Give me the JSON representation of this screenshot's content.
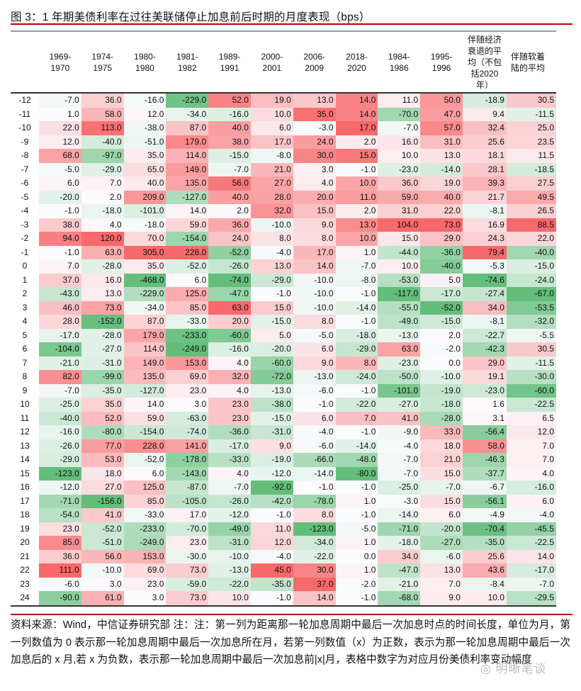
{
  "title": "图 3：1 年期美债利率在过往美联储停止加息前后时期的月度表现（bps）",
  "note": "资料来源：Wind，中信证券研究部  注：注：第一列为距离那一轮加息周期中最后一次加息时点的时间长度，单位为月，第一列数值为 0 表示那一轮加息周期中最后一次加息所在月，若第一列数值（x）为正数，表示为那一轮加息周期中最后一次加息后的 x 月,若 x 为负数，表示那一轮加息周期中最后一次加息前|x|月，表格中数字为对应月份美债利率变动幅度",
  "watermark": "明晰笔谈",
  "colors": {
    "positive": "#f8696b",
    "negative": "#63be7b",
    "neutral": "#fcfcff",
    "title_rule": "#c00000"
  },
  "chart_data": {
    "type": "heatmap",
    "title": "图 3：1 年期美债利率在过往美联储停止加息前后时期的月度表现（bps）",
    "row_labels": [
      "-12",
      "-11",
      "-10",
      "-9",
      "-8",
      "-7",
      "-6",
      "-5",
      "-4",
      "-3",
      "-2",
      "-1",
      "0",
      "1",
      "2",
      "3",
      "4",
      "5",
      "6",
      "7",
      "8",
      "9",
      "10",
      "11",
      "12",
      "13",
      "14",
      "15",
      "16",
      "17",
      "18",
      "19",
      "20",
      "21",
      "22",
      "23",
      "24"
    ],
    "columns": [
      {
        "header": "1969-\n1970",
        "values": [
          "-7.0",
          "1.0",
          "22.0",
          "12.0",
          "68.0",
          "-5.0",
          "6.0",
          "-20.0",
          "-1.0",
          "38.0",
          "94.0",
          "-1.0",
          "7.0",
          "37.0",
          "-43.0",
          "46.0",
          "28.0",
          "-17.0",
          "-104.0",
          "-21.0",
          "82.0",
          "-7.0",
          "-25.0",
          "-40.0",
          "-16.0",
          "-26.0",
          "-29.0",
          "-123.0",
          "-12.0",
          "-71.0",
          "-54.0",
          "23.0",
          "85.0",
          "36.0",
          "111.0",
          "-6.0",
          "-90.0"
        ]
      },
      {
        "header": "1974-\n1975",
        "values": [
          "36.0",
          "58.0",
          "113.0",
          "-40.0",
          "-97.0",
          "-29.0",
          "7.0",
          "2.0",
          "-18.0",
          "4.0",
          "120.0",
          "63.0",
          "-28.0",
          "16.0",
          "13.0",
          "73.0",
          "-152.0",
          "-28.0",
          "-27.0",
          "-31.0",
          "-99.0",
          "-35.0",
          "35.0",
          "52.0",
          "-80.0",
          "77.0",
          "53.0",
          "18.0",
          "27.0",
          "-156.0",
          "41.0",
          "-52.0",
          "-51.0",
          "56.0",
          "-10.0",
          "3.0",
          "61.0"
        ]
      },
      {
        "header": "1980-\n1980",
        "values": [
          "-16.0",
          "12.0",
          "-38.0",
          "-51.0",
          "35.0",
          "65.0",
          "40.0",
          "209.0",
          "-101.0",
          "-18.0",
          "70.0",
          "305.0",
          "35.0",
          "-468.0",
          "-229.0",
          "-34.0",
          "87.0",
          "179.0",
          "114.0",
          "149.0",
          "135.0",
          "-127.0",
          "14.0",
          "59.0",
          "-154.0",
          "228.0",
          "-52.0",
          "6.0",
          "125.0",
          "85.0",
          "-33.0",
          "-233.0",
          "-249.0",
          "153.0",
          "69.0",
          "23.0",
          "3.0"
        ]
      },
      {
        "header": "1981-\n1982",
        "values": [
          "-229.0",
          "-34.0",
          "87.0",
          "179.0",
          "114.0",
          "149.0",
          "135.0",
          "-127.0",
          "14.0",
          "59.0",
          "-154.0",
          "228.0",
          "-52.0",
          "6.0",
          "125.0",
          "85.0",
          "-33.0",
          "-233.0",
          "-249.0",
          "153.0",
          "69.0",
          "23.0",
          "3.0",
          "-63.0",
          "-74.0",
          "141.0",
          "-178.0",
          "-143.0",
          "-87.0",
          "-105.0",
          "17.0",
          "-70.0",
          "23.0",
          "-30.0",
          "73.0",
          "-59.0",
          "73.0"
        ]
      },
      {
        "header": "1989-\n1991",
        "values": [
          "52.0",
          "-16.0",
          "40.0",
          "38.0",
          "-15.0",
          "-7.0",
          "56.0",
          "40.0",
          "2.0",
          "36.0",
          "24.0",
          "-52.0",
          "-26.0",
          "-74.0",
          "-47.0",
          "63.0",
          "20.0",
          "-60.0",
          "-16.0",
          "4.0",
          "32.0",
          "4.0",
          "23.0",
          "23.0",
          "-36.0",
          "-17.0",
          "-33.0",
          "4.0",
          "-7.0",
          "-26.0",
          "-12.0",
          "-49.0",
          "-31.0",
          "-10.0",
          "-13.0",
          "-22.0",
          "10.0"
        ]
      },
      {
        "header": "2000-\n2001",
        "values": [
          "19.0",
          "10.0",
          "6.0",
          "17.0",
          "-8.0",
          "21.0",
          "27.0",
          "28.0",
          "32.0",
          "-10.0",
          "8.0",
          "-4.0",
          "13.0",
          "-29.0",
          "-1.0",
          "15.0",
          "-15.0",
          "5.0",
          "-20.0",
          "-60.0",
          "-72.0",
          "-13.0",
          "-38.0",
          "-15.0",
          "-31.0",
          "9.0",
          "-19.0",
          "-12.0",
          "-92.0",
          "-42.0",
          "-1.0",
          "11.0",
          "12.0",
          "-4.0",
          "45.0",
          "-35.0",
          "-1.0"
        ]
      },
      {
        "header": "2006-\n2009",
        "values": [
          "13.0",
          "35.0",
          "-3.0",
          "24.0",
          "30.0",
          "3.0",
          "4.0",
          "20.0",
          "15.0",
          "9.0",
          "8.0",
          "17.0",
          "14.0",
          "-10.0",
          "-10.0",
          "-10.0",
          "8.0",
          "-5.0",
          "6.0",
          "9.0",
          "-13.0",
          "-6.0",
          "-1.0",
          "6.0",
          "-4.0",
          "-6.0",
          "-66.0",
          "-14.0",
          "-1.0",
          "-78.0",
          "8.0",
          "-123.0",
          "-34.0",
          "-22.0",
          "30.0",
          "37.0",
          "14.0"
        ]
      },
      {
        "header": "2018-\n2020",
        "values": [
          "14.0",
          "14.0",
          "17.0",
          "2.0",
          "15.0",
          "-1.0",
          "10.0",
          "11.0",
          "2.0",
          "13.0",
          "10.0",
          "1.0",
          "-7.0",
          "-8.0",
          "-1.0",
          "-14.0",
          "-1.0",
          "-18.0",
          "-29.0",
          "8.0",
          "-24.0",
          "-1.0",
          "-22.0",
          "7.0",
          "-1.0",
          "-14.0",
          "-48.0",
          "-80.0",
          "-1.0",
          "1.0",
          "-1.0",
          "-5.0",
          "1.0",
          "0.0",
          "1.0",
          "-2.0",
          "-1.0"
        ]
      },
      {
        "header": "1984-\n1986",
        "values": [
          "11.0",
          "-70.0",
          "-7.0",
          "16.0",
          "10.0",
          "-23.0",
          "36.0",
          "59.0",
          "31.0",
          "104.0",
          "15.0",
          "-44.0",
          "10.0",
          "-53.0",
          "-117.0",
          "-55.0",
          "-49.0",
          "-13.0",
          "63.0",
          "-23.0",
          "-50.0",
          "-101.0",
          "-27.0",
          "41.0",
          "-9.0",
          "-4.0",
          "-7.0",
          "-7.0",
          "-25.0",
          "-3.0",
          "-14.0",
          "-71.0",
          "-18.0",
          "34.0",
          "-47.0",
          "-21.0",
          "-68.0"
        ]
      },
      {
        "header": "1995-\n1996",
        "values": [
          "50.0",
          "47.0",
          "57.0",
          "31.0",
          "13.0",
          "-14.0",
          "19.0",
          "40.0",
          "22.0",
          "73.0",
          "29.0",
          "-36.0",
          "-40.0",
          "5.0",
          "-17.0",
          "-52.0",
          "-15.0",
          "2.0",
          "-2.0",
          "0.0",
          "-10.0",
          "-19.0",
          "-18.0",
          "-28.0",
          "33.0",
          "18.0",
          "21.0",
          "15.0",
          "-7.0",
          "15.0",
          "6.0",
          "-20.0",
          "-27.0",
          "-6.0",
          "13.0",
          "7.0",
          "9.0"
        ]
      },
      {
        "header": "伴随经济\n衰退的平\n均（不包\n括2020\n年）",
        "values": [
          "-18.9",
          "9.4",
          "32.4",
          "25.6",
          "18.1",
          "28.1",
          "39.3",
          "21.7",
          "-8.1",
          "16.9",
          "24.3",
          "79.4",
          "-5.3",
          "-74.6",
          "-27.4",
          "34.0",
          "-8.1",
          "-22.7",
          "-42.3",
          "29.0",
          "19.1",
          "-23.0",
          "1.6",
          "3.1",
          "-56.4",
          "58.0",
          "-46.3",
          "-37.7",
          "-6.7",
          "-56.1",
          "-4.9",
          "-70.4",
          "-35.0",
          "25.6",
          "43.6",
          "-8.4",
          "10.0"
        ]
      },
      {
        "header": "伴随软着\n陆的平均",
        "values": [
          "30.5",
          "-11.5",
          "25.0",
          "23.5",
          "11.5",
          "-18.5",
          "27.5",
          "49.5",
          "26.5",
          "88.5",
          "22.0",
          "-40.0",
          "-15.0",
          "-24.0",
          "-67.0",
          "-53.5",
          "-32.0",
          "-5.5",
          "30.5",
          "-11.5",
          "-30.0",
          "-60.0",
          "-22.5",
          "6.5",
          "12.0",
          "7.0",
          "7.0",
          "4.0",
          "-16.0",
          "6.0",
          "-4.0",
          "-45.5",
          "-22.5",
          "14.0",
          "-17.0",
          "-7.0",
          "-29.5"
        ]
      }
    ],
    "color_scale": "per-column, red for positive, green for negative, white at zero"
  }
}
